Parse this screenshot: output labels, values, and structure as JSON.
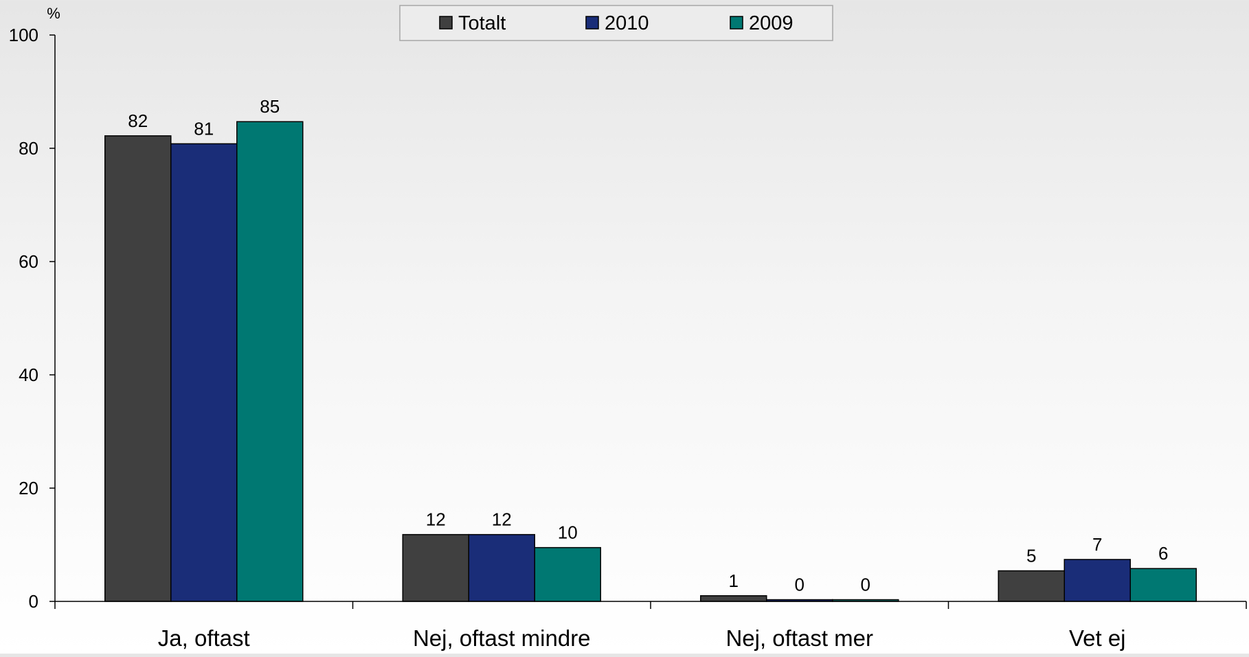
{
  "chart_data": {
    "type": "bar",
    "ylabel": "%",
    "ylim": [
      0,
      100
    ],
    "yticks": [
      0,
      20,
      40,
      60,
      80,
      100
    ],
    "grid": false,
    "legend_position": "top-center",
    "categories": [
      "Ja, oftast",
      "Nej, oftast mindre",
      "Nej, oftast mer",
      "Vet ej"
    ],
    "series": [
      {
        "name": "Totalt",
        "color": "#404040",
        "values": [
          82.2,
          11.8,
          1.0,
          5.4
        ],
        "labels": [
          "82",
          "12",
          "1",
          "5"
        ]
      },
      {
        "name": "2010",
        "color": "#1a2d78",
        "values": [
          80.8,
          11.8,
          0.3,
          7.4
        ],
        "labels": [
          "81",
          "12",
          "0",
          "7"
        ]
      },
      {
        "name": "2009",
        "color": "#007872",
        "values": [
          84.7,
          9.5,
          0.3,
          5.8
        ],
        "labels": [
          "85",
          "10",
          "0",
          "6"
        ]
      }
    ]
  }
}
